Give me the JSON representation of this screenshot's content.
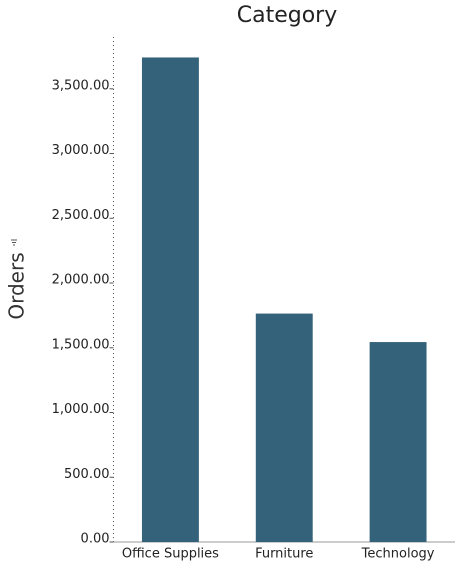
{
  "chart_data": {
    "type": "bar",
    "title": "Category",
    "y_label": "Orders",
    "categories": [
      "Office Supplies",
      "Furniture",
      "Technology"
    ],
    "values": [
      3742,
      1764,
      1544
    ],
    "color": "#33627a",
    "ylim": [
      0,
      3900
    ],
    "yticks": [
      {
        "value": 0,
        "label": "0.00"
      },
      {
        "value": 500,
        "label": "500.00"
      },
      {
        "value": 1000,
        "label": "1,000.00"
      },
      {
        "value": 1500,
        "label": "1,500.00"
      },
      {
        "value": 2000,
        "label": "2,000.00"
      },
      {
        "value": 2500,
        "label": "2,500.00"
      },
      {
        "value": 3000,
        "label": "3,000.00"
      },
      {
        "value": 3500,
        "label": "3,500.00"
      }
    ]
  }
}
